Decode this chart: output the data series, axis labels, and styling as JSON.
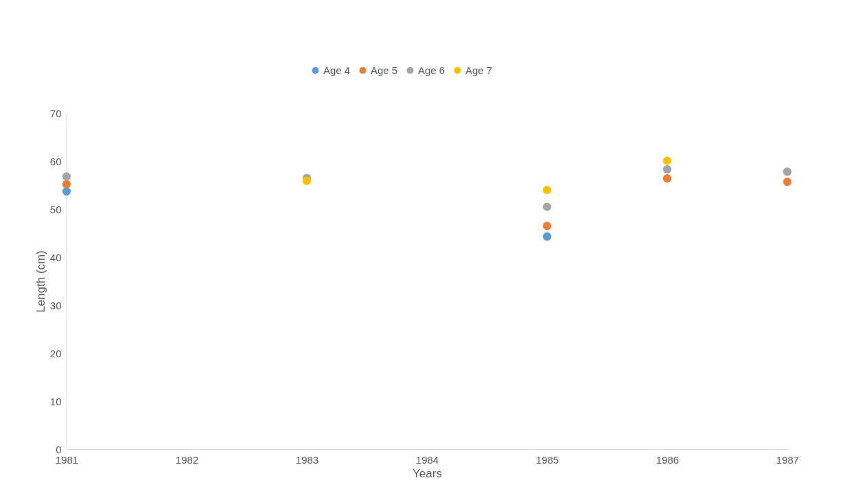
{
  "chart_data": {
    "type": "scatter",
    "xlabel": "Years",
    "ylabel": "Length (cm)",
    "x": [
      1981,
      1983,
      1985,
      1986,
      1987
    ],
    "series": [
      {
        "name": "Age 4",
        "color": "#5b9bd5",
        "values": [
          53.7,
          null,
          44.3,
          null,
          null
        ]
      },
      {
        "name": "Age 5",
        "color": "#ed7d31",
        "values": [
          55.2,
          null,
          46.5,
          56.4,
          55.7
        ]
      },
      {
        "name": "Age 6",
        "color": "#a5a5a5",
        "values": [
          56.8,
          56.5,
          50.5,
          58.3,
          57.8
        ]
      },
      {
        "name": "Age 7",
        "color": "#ffc000",
        "values": [
          null,
          55.9,
          54.0,
          60.1,
          null
        ]
      }
    ],
    "xlim": [
      1981,
      1987
    ],
    "xticks": [
      1981,
      1982,
      1983,
      1984,
      1985,
      1986,
      1987
    ],
    "ylim": [
      0,
      70
    ],
    "yticks": [
      0,
      10,
      20,
      30,
      40,
      50,
      60,
      70
    ],
    "grid": false,
    "legend": "top",
    "marker": "circle"
  }
}
